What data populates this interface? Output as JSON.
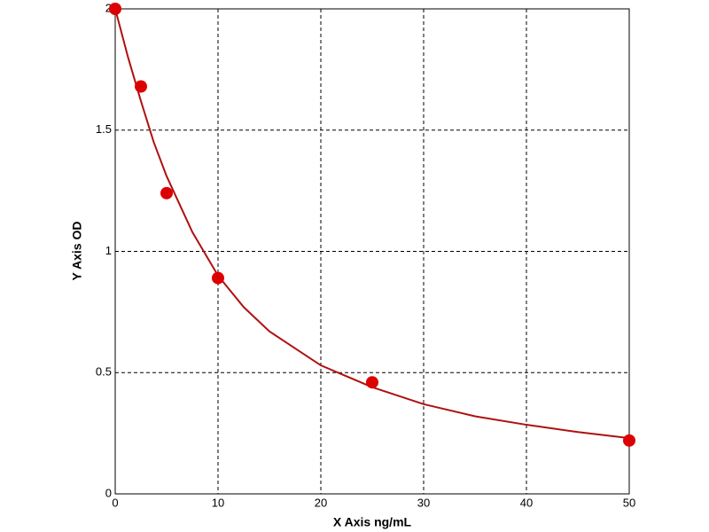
{
  "chart_data": {
    "type": "scatter",
    "x_label": "X Axis ng/mL",
    "y_label": "Y Axis OD",
    "xlim": [
      0,
      50
    ],
    "ylim": [
      0,
      2
    ],
    "xticks": [
      0,
      10,
      20,
      30,
      40,
      50
    ],
    "yticks": [
      0,
      0.5,
      1,
      1.5,
      2
    ],
    "grid": true,
    "series": [
      {
        "color": "#dd0000",
        "x": [
          0,
          2.5,
          5,
          10,
          25,
          50
        ],
        "values": [
          2.0,
          1.68,
          1.24,
          0.89,
          0.46,
          0.22
        ]
      },
      {
        "color": "#b01010",
        "x": [
          0,
          1.25,
          2.5,
          3.75,
          5,
          7.5,
          10,
          12.5,
          15,
          20,
          25,
          30,
          35,
          40,
          45,
          50
        ],
        "values": [
          2.0,
          1.8,
          1.62,
          1.45,
          1.31,
          1.08,
          0.9,
          0.77,
          0.67,
          0.53,
          0.44,
          0.37,
          0.32,
          0.285,
          0.255,
          0.23
        ]
      }
    ]
  }
}
